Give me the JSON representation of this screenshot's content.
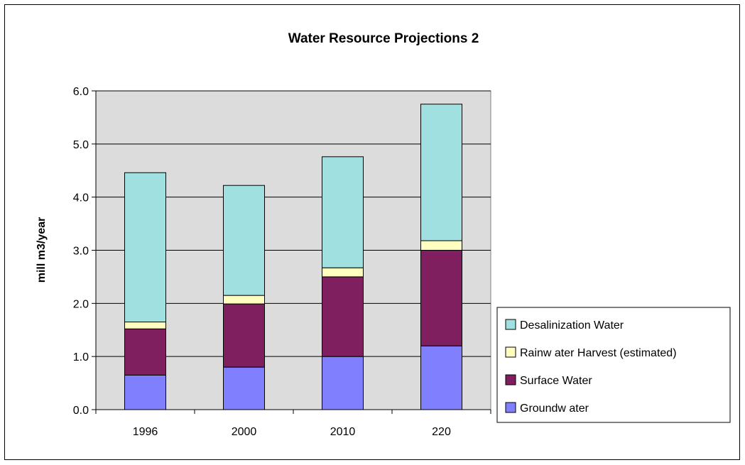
{
  "chart_data": {
    "type": "bar",
    "stacked": true,
    "title": "Water Resource Projections 2",
    "xlabel": "",
    "ylabel": "mill m3/year",
    "categories": [
      "1996",
      "2000",
      "2010",
      "220"
    ],
    "ylim": [
      0,
      6
    ],
    "yticks": [
      "0.0",
      "1.0",
      "2.0",
      "3.0",
      "4.0",
      "5.0",
      "6.0"
    ],
    "grid": true,
    "legend_position": "right",
    "series": [
      {
        "name": "Groundwater",
        "legend_label": "Groundw ater",
        "color": "#8080ff",
        "values": [
          0.65,
          0.8,
          1.0,
          1.2
        ]
      },
      {
        "name": "Surface Water",
        "legend_label": "Surface Water",
        "color": "#7f1f5f",
        "values": [
          0.87,
          1.19,
          1.5,
          1.8
        ]
      },
      {
        "name": "Rainwater Harvest (estimated)",
        "legend_label": "Rainw ater Harvest (estimated)",
        "color": "#ffffc0",
        "values": [
          0.13,
          0.16,
          0.17,
          0.18
        ]
      },
      {
        "name": "Desalinization Water",
        "legend_label": "Desalinization Water",
        "color": "#a0e0e0",
        "values": [
          2.81,
          2.07,
          2.09,
          2.57
        ]
      }
    ],
    "legend_order": [
      3,
      2,
      1,
      0
    ],
    "plot_background": "#c0c0c0"
  }
}
